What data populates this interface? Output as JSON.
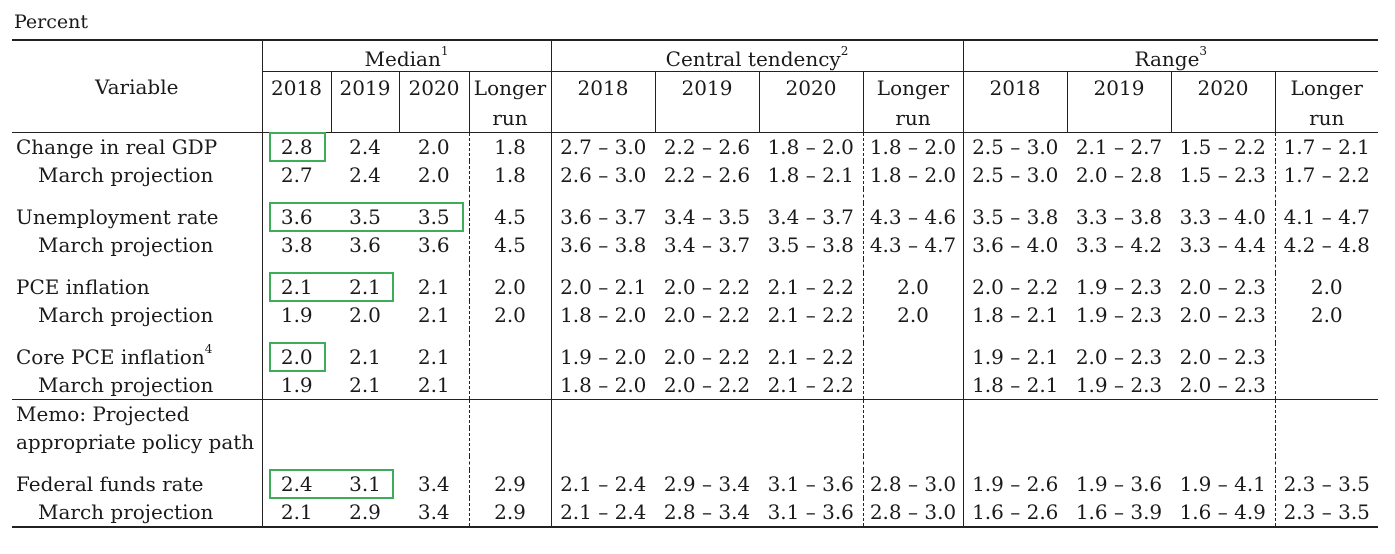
{
  "unit_label": "Percent",
  "headers": {
    "variable": "Variable",
    "groups": [
      {
        "name": "Median",
        "note": "1"
      },
      {
        "name": "Central tendency",
        "note": "2"
      },
      {
        "name": "Range",
        "note": "3"
      }
    ],
    "years": [
      "2018",
      "2019",
      "2020"
    ],
    "longer_run_line1": "Longer",
    "longer_run_line2": "run"
  },
  "rows": [
    {
      "label": "Change in real GDP",
      "note": "",
      "median": [
        "2.8",
        "2.4",
        "2.0",
        "1.8"
      ],
      "central": [
        "2.7 – 3.0",
        "2.2 – 2.6",
        "1.8 – 2.0",
        "1.8 – 2.0"
      ],
      "range": [
        "2.5 – 3.0",
        "2.1 – 2.7",
        "1.5 – 2.2",
        "1.7 – 2.1"
      ]
    },
    {
      "label": "March projection",
      "note": "",
      "median": [
        "2.7",
        "2.4",
        "2.0",
        "1.8"
      ],
      "central": [
        "2.6 – 3.0",
        "2.2 – 2.6",
        "1.8 – 2.1",
        "1.8 – 2.0"
      ],
      "range": [
        "2.5 – 3.0",
        "2.0 – 2.8",
        "1.5 – 2.3",
        "1.7 – 2.2"
      ]
    },
    {
      "label": "Unemployment rate",
      "note": "",
      "median": [
        "3.6",
        "3.5",
        "3.5",
        "4.5"
      ],
      "central": [
        "3.6 – 3.7",
        "3.4 – 3.5",
        "3.4 – 3.7",
        "4.3 – 4.6"
      ],
      "range": [
        "3.5 – 3.8",
        "3.3 – 3.8",
        "3.3 – 4.0",
        "4.1 – 4.7"
      ]
    },
    {
      "label": "March projection",
      "note": "",
      "median": [
        "3.8",
        "3.6",
        "3.6",
        "4.5"
      ],
      "central": [
        "3.6 – 3.8",
        "3.4 – 3.7",
        "3.5 – 3.8",
        "4.3 – 4.7"
      ],
      "range": [
        "3.6 – 4.0",
        "3.3 – 4.2",
        "3.3 – 4.4",
        "4.2 – 4.8"
      ]
    },
    {
      "label": "PCE inflation",
      "note": "",
      "median": [
        "2.1",
        "2.1",
        "2.1",
        "2.0"
      ],
      "central": [
        "2.0 – 2.1",
        "2.0 – 2.2",
        "2.1 – 2.2",
        "2.0"
      ],
      "range": [
        "2.0 – 2.2",
        "1.9 – 2.3",
        "2.0 – 2.3",
        "2.0"
      ]
    },
    {
      "label": "March projection",
      "note": "",
      "median": [
        "1.9",
        "2.0",
        "2.1",
        "2.0"
      ],
      "central": [
        "1.8 – 2.0",
        "2.0 – 2.2",
        "2.1 – 2.2",
        "2.0"
      ],
      "range": [
        "1.8 – 2.1",
        "1.9 – 2.3",
        "2.0 – 2.3",
        "2.0"
      ]
    },
    {
      "label": "Core PCE inflation",
      "note": "4",
      "median": [
        "2.0",
        "2.1",
        "2.1",
        ""
      ],
      "central": [
        "1.9 – 2.0",
        "2.0 – 2.2",
        "2.1 – 2.2",
        ""
      ],
      "range": [
        "1.9 – 2.1",
        "2.0 – 2.3",
        "2.0 – 2.3",
        ""
      ]
    },
    {
      "label": "March projection",
      "note": "",
      "median": [
        "1.9",
        "2.1",
        "2.1",
        ""
      ],
      "central": [
        "1.8 – 2.0",
        "2.0 – 2.2",
        "2.1 – 2.2",
        ""
      ],
      "range": [
        "1.8 – 2.1",
        "1.9 – 2.3",
        "2.0 – 2.3",
        ""
      ]
    },
    {
      "label": "Federal funds rate",
      "note": "",
      "median": [
        "2.4",
        "3.1",
        "3.4",
        "2.9"
      ],
      "central": [
        "2.1 – 2.4",
        "2.9 – 3.4",
        "3.1 – 3.6",
        "2.8 – 3.0"
      ],
      "range": [
        "1.9 – 2.6",
        "1.9 – 3.6",
        "1.9 – 4.1",
        "2.3 – 3.5"
      ]
    },
    {
      "label": "March projection",
      "note": "",
      "median": [
        "2.1",
        "2.9",
        "3.4",
        "2.9"
      ],
      "central": [
        "2.1 – 2.4",
        "2.8 – 3.4",
        "3.1 – 3.6",
        "2.8 – 3.0"
      ],
      "range": [
        "1.6 – 2.6",
        "1.6 – 3.9",
        "1.6 – 4.9",
        "2.3 – 3.5"
      ]
    }
  ],
  "memo": {
    "line1": "Memo: Projected",
    "line2": "appropriate policy path"
  },
  "highlight_color": "#3cae5a"
}
